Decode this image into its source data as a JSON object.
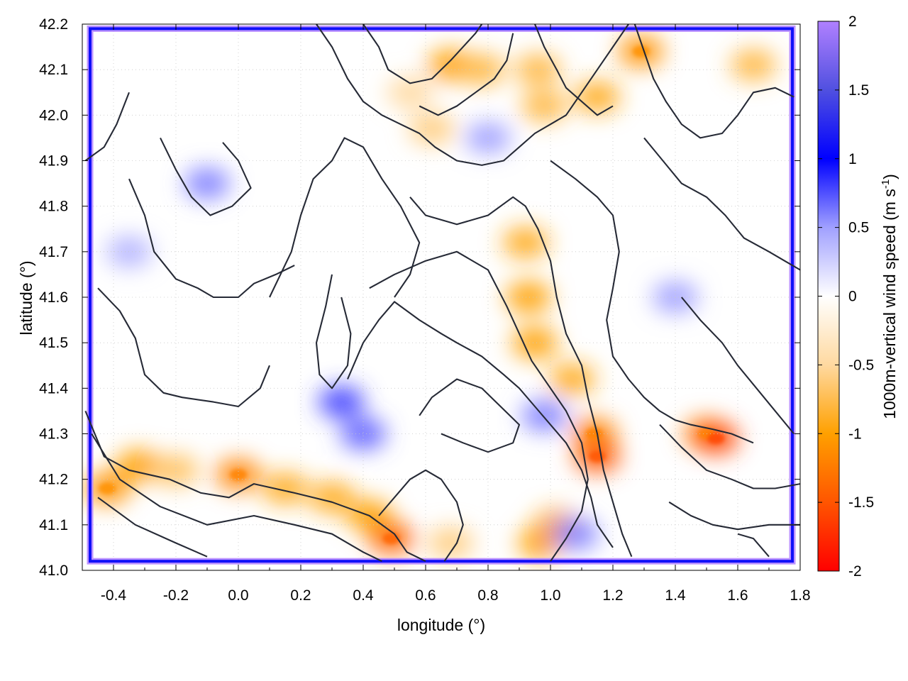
{
  "chart_data": {
    "type": "heatmap",
    "title": "",
    "xlabel": "longitude (°)",
    "ylabel": "latitude (°)",
    "colorbar_label": "1000m-vertical wind speed (m s",
    "colorbar_label_sup": "-1",
    "colorbar_label_end": ")",
    "xlim": [
      -0.5,
      1.8
    ],
    "ylim": [
      41.0,
      42.2
    ],
    "x_ticks": [
      -0.4,
      -0.2,
      0.0,
      0.2,
      0.4,
      0.6,
      0.8,
      1.0,
      1.2,
      1.4,
      1.6,
      1.8
    ],
    "x_tick_labels": [
      "-0.4",
      "-0.2",
      "0.0",
      "0.2",
      "0.4",
      "0.6",
      "0.8",
      "1.0",
      "1.2",
      "1.4",
      "1.6",
      "1.8"
    ],
    "y_ticks": [
      41.0,
      41.1,
      41.2,
      41.3,
      41.4,
      41.5,
      41.6,
      41.7,
      41.8,
      41.9,
      42.0,
      42.1,
      42.2
    ],
    "y_tick_labels": [
      "41.0",
      "41.1",
      "41.2",
      "41.3",
      "41.4",
      "41.5",
      "41.6",
      "41.7",
      "41.8",
      "41.9",
      "42.0",
      "42.1",
      "42.2"
    ],
    "clim": [
      -2,
      2
    ],
    "cbar_ticks": [
      2,
      1.5,
      1,
      0.5,
      0,
      -0.5,
      -1,
      -1.5,
      -2
    ],
    "cbar_tick_labels": [
      "2",
      "1.5",
      "1",
      "0.5",
      "0",
      "-0.5",
      "-1",
      "-1.5",
      "-2"
    ],
    "colorscale": [
      {
        "v": -2.0,
        "color": "#ff0000"
      },
      {
        "v": -1.5,
        "color": "#ff5500"
      },
      {
        "v": -1.0,
        "color": "#ffa000"
      },
      {
        "v": -0.5,
        "color": "#ffd9a0"
      },
      {
        "v": 0.0,
        "color": "#ffffff"
      },
      {
        "v": 0.5,
        "color": "#a0a0ff"
      },
      {
        "v": 1.0,
        "color": "#0000ff"
      },
      {
        "v": 1.5,
        "color": "#5050e0"
      },
      {
        "v": 2.0,
        "color": "#b080ff"
      }
    ],
    "grid": true,
    "negative_features": [
      {
        "lon": -0.42,
        "lat": 41.18,
        "value": -1.1
      },
      {
        "lon": -0.32,
        "lat": 41.23,
        "value": -1.0
      },
      {
        "lon": -0.2,
        "lat": 41.22,
        "value": -0.7
      },
      {
        "lon": 0.0,
        "lat": 41.21,
        "value": -1.2
      },
      {
        "lon": 0.15,
        "lat": 41.18,
        "value": -0.9
      },
      {
        "lon": 0.3,
        "lat": 41.16,
        "value": -0.9
      },
      {
        "lon": 0.42,
        "lat": 41.12,
        "value": -1.0
      },
      {
        "lon": 0.49,
        "lat": 41.07,
        "value": -1.4
      },
      {
        "lon": 0.68,
        "lat": 41.06,
        "value": -0.6
      },
      {
        "lon": 0.68,
        "lat": 42.11,
        "value": -1.0
      },
      {
        "lon": 0.78,
        "lat": 42.1,
        "value": -0.8
      },
      {
        "lon": 0.96,
        "lat": 42.1,
        "value": -0.8
      },
      {
        "lon": 0.98,
        "lat": 42.02,
        "value": -0.8
      },
      {
        "lon": 1.15,
        "lat": 42.04,
        "value": -0.9
      },
      {
        "lon": 1.29,
        "lat": 42.14,
        "value": -1.1
      },
      {
        "lon": 1.65,
        "lat": 42.11,
        "value": -0.8
      },
      {
        "lon": 0.92,
        "lat": 41.72,
        "value": -0.9
      },
      {
        "lon": 0.93,
        "lat": 41.6,
        "value": -1.0
      },
      {
        "lon": 0.95,
        "lat": 41.5,
        "value": -1.0
      },
      {
        "lon": 1.07,
        "lat": 41.42,
        "value": -0.9
      },
      {
        "lon": 1.14,
        "lat": 41.3,
        "value": -1.2
      },
      {
        "lon": 1.15,
        "lat": 41.25,
        "value": -1.5
      },
      {
        "lon": 1.02,
        "lat": 41.1,
        "value": -0.9
      },
      {
        "lon": 0.97,
        "lat": 41.06,
        "value": -1.0
      },
      {
        "lon": 1.5,
        "lat": 41.3,
        "value": -1.2
      },
      {
        "lon": 1.53,
        "lat": 41.29,
        "value": -1.6
      },
      {
        "lon": 0.62,
        "lat": 41.97,
        "value": -0.6
      },
      {
        "lon": 0.55,
        "lat": 42.05,
        "value": -0.5
      }
    ],
    "positive_features": [
      {
        "lon": 0.33,
        "lat": 41.37,
        "value": 0.8
      },
      {
        "lon": 0.4,
        "lat": 41.3,
        "value": 0.7
      },
      {
        "lon": -0.1,
        "lat": 41.85,
        "value": 0.6
      },
      {
        "lon": 1.08,
        "lat": 41.08,
        "value": 0.6
      },
      {
        "lon": 0.98,
        "lat": 41.34,
        "value": 0.6
      },
      {
        "lon": 1.4,
        "lat": 41.6,
        "value": 0.5
      },
      {
        "lon": 0.8,
        "lat": 41.95,
        "value": 0.5
      },
      {
        "lon": -0.35,
        "lat": 41.7,
        "value": 0.4
      }
    ],
    "contours": [
      [
        [
          -0.49,
          41.35
        ],
        [
          -0.43,
          41.25
        ],
        [
          -0.35,
          41.22
        ],
        [
          -0.22,
          41.2
        ],
        [
          -0.12,
          41.17
        ],
        [
          -0.03,
          41.16
        ],
        [
          0.05,
          41.19
        ],
        [
          0.18,
          41.17
        ],
        [
          0.3,
          41.15
        ],
        [
          0.42,
          41.12
        ],
        [
          0.5,
          41.08
        ],
        [
          0.54,
          41.04
        ],
        [
          0.6,
          41.02
        ]
      ],
      [
        [
          -0.47,
          41.3
        ],
        [
          -0.38,
          41.2
        ],
        [
          -0.25,
          41.14
        ],
        [
          -0.1,
          41.1
        ],
        [
          0.05,
          41.12
        ],
        [
          0.18,
          41.1
        ],
        [
          0.3,
          41.08
        ],
        [
          0.4,
          41.04
        ],
        [
          0.46,
          41.02
        ]
      ],
      [
        [
          -0.45,
          41.16
        ],
        [
          -0.33,
          41.1
        ],
        [
          -0.2,
          41.06
        ],
        [
          -0.1,
          41.03
        ]
      ],
      [
        [
          -0.49,
          41.9
        ],
        [
          -0.43,
          41.93
        ],
        [
          -0.39,
          41.98
        ],
        [
          -0.35,
          42.05
        ]
      ],
      [
        [
          -0.45,
          41.62
        ],
        [
          -0.38,
          41.57
        ],
        [
          -0.33,
          41.51
        ],
        [
          -0.3,
          41.43
        ],
        [
          -0.24,
          41.39
        ],
        [
          -0.18,
          41.38
        ],
        [
          -0.08,
          41.37
        ],
        [
          0.0,
          41.36
        ],
        [
          0.07,
          41.4
        ],
        [
          0.1,
          41.45
        ]
      ],
      [
        [
          -0.35,
          41.86
        ],
        [
          -0.3,
          41.78
        ],
        [
          -0.27,
          41.7
        ],
        [
          -0.2,
          41.64
        ],
        [
          -0.13,
          41.62
        ],
        [
          -0.08,
          41.6
        ],
        [
          0.0,
          41.6
        ],
        [
          0.05,
          41.63
        ],
        [
          0.12,
          41.65
        ],
        [
          0.18,
          41.67
        ]
      ],
      [
        [
          -0.25,
          41.95
        ],
        [
          -0.2,
          41.88
        ],
        [
          -0.15,
          41.82
        ],
        [
          -0.09,
          41.78
        ],
        [
          -0.02,
          41.8
        ],
        [
          0.04,
          41.84
        ],
        [
          0.0,
          41.9
        ],
        [
          -0.05,
          41.94
        ]
      ],
      [
        [
          0.1,
          41.6
        ],
        [
          0.17,
          41.7
        ],
        [
          0.2,
          41.78
        ],
        [
          0.24,
          41.86
        ],
        [
          0.3,
          41.9
        ],
        [
          0.34,
          41.95
        ],
        [
          0.4,
          41.93
        ],
        [
          0.46,
          41.86
        ],
        [
          0.52,
          41.8
        ],
        [
          0.58,
          41.72
        ],
        [
          0.55,
          41.65
        ],
        [
          0.5,
          41.6
        ]
      ],
      [
        [
          0.3,
          41.65
        ],
        [
          0.28,
          41.58
        ],
        [
          0.25,
          41.5
        ],
        [
          0.26,
          41.43
        ],
        [
          0.3,
          41.4
        ],
        [
          0.35,
          41.45
        ],
        [
          0.36,
          41.52
        ],
        [
          0.33,
          41.6
        ]
      ],
      [
        [
          0.35,
          41.42
        ],
        [
          0.4,
          41.5
        ],
        [
          0.45,
          41.55
        ],
        [
          0.5,
          41.59
        ],
        [
          0.58,
          41.55
        ],
        [
          0.65,
          41.52
        ],
        [
          0.7,
          41.5
        ],
        [
          0.78,
          41.47
        ],
        [
          0.85,
          41.43
        ],
        [
          0.9,
          41.4
        ],
        [
          0.95,
          41.36
        ],
        [
          1.0,
          41.32
        ],
        [
          1.05,
          41.28
        ],
        [
          1.1,
          41.22
        ],
        [
          1.13,
          41.16
        ],
        [
          1.15,
          41.1
        ],
        [
          1.2,
          41.05
        ]
      ],
      [
        [
          0.42,
          41.62
        ],
        [
          0.5,
          41.65
        ],
        [
          0.6,
          41.68
        ],
        [
          0.7,
          41.7
        ],
        [
          0.8,
          41.66
        ],
        [
          0.86,
          41.58
        ],
        [
          0.9,
          41.52
        ],
        [
          0.94,
          41.46
        ],
        [
          1.0,
          41.4
        ],
        [
          1.05,
          41.35
        ],
        [
          1.1,
          41.28
        ],
        [
          1.12,
          41.2
        ],
        [
          1.1,
          41.13
        ],
        [
          1.05,
          41.07
        ],
        [
          1.0,
          41.02
        ]
      ],
      [
        [
          0.55,
          41.82
        ],
        [
          0.6,
          41.78
        ],
        [
          0.7,
          41.76
        ],
        [
          0.8,
          41.78
        ],
        [
          0.88,
          41.82
        ],
        [
          0.92,
          41.8
        ],
        [
          0.96,
          41.75
        ],
        [
          1.0,
          41.68
        ],
        [
          1.02,
          41.6
        ],
        [
          1.05,
          41.52
        ],
        [
          1.1,
          41.45
        ],
        [
          1.12,
          41.38
        ],
        [
          1.15,
          41.3
        ],
        [
          1.17,
          41.22
        ],
        [
          1.2,
          41.15
        ],
        [
          1.23,
          41.08
        ],
        [
          1.26,
          41.03
        ]
      ],
      [
        [
          1.0,
          41.9
        ],
        [
          1.08,
          41.86
        ],
        [
          1.15,
          41.82
        ],
        [
          1.2,
          41.78
        ],
        [
          1.22,
          41.7
        ],
        [
          1.2,
          41.62
        ],
        [
          1.18,
          41.55
        ],
        [
          1.2,
          41.47
        ],
        [
          1.25,
          41.42
        ],
        [
          1.3,
          41.38
        ],
        [
          1.35,
          41.35
        ],
        [
          1.4,
          41.33
        ],
        [
          1.45,
          41.32
        ],
        [
          1.52,
          41.31
        ],
        [
          1.58,
          41.3
        ],
        [
          1.65,
          41.28
        ]
      ],
      [
        [
          1.3,
          41.95
        ],
        [
          1.36,
          41.9
        ],
        [
          1.42,
          41.85
        ],
        [
          1.5,
          41.82
        ],
        [
          1.56,
          41.78
        ],
        [
          1.62,
          41.73
        ],
        [
          1.7,
          41.7
        ],
        [
          1.75,
          41.68
        ],
        [
          1.8,
          41.66
        ]
      ],
      [
        [
          1.42,
          41.6
        ],
        [
          1.48,
          41.55
        ],
        [
          1.55,
          41.5
        ],
        [
          1.6,
          41.45
        ],
        [
          1.66,
          41.4
        ],
        [
          1.72,
          41.35
        ],
        [
          1.78,
          41.3
        ]
      ],
      [
        [
          1.35,
          41.32
        ],
        [
          1.42,
          41.27
        ],
        [
          1.5,
          41.22
        ],
        [
          1.58,
          41.2
        ],
        [
          1.65,
          41.18
        ],
        [
          1.72,
          41.18
        ],
        [
          1.8,
          41.19
        ]
      ],
      [
        [
          1.38,
          41.15
        ],
        [
          1.45,
          41.12
        ],
        [
          1.52,
          41.1
        ],
        [
          1.6,
          41.09
        ],
        [
          1.7,
          41.1
        ],
        [
          1.8,
          41.1
        ]
      ],
      [
        [
          0.25,
          42.2
        ],
        [
          0.3,
          42.15
        ],
        [
          0.35,
          42.08
        ],
        [
          0.4,
          42.03
        ],
        [
          0.46,
          42.0
        ],
        [
          0.52,
          41.98
        ],
        [
          0.58,
          41.96
        ],
        [
          0.63,
          41.93
        ],
        [
          0.7,
          41.9
        ],
        [
          0.78,
          41.89
        ],
        [
          0.85,
          41.9
        ],
        [
          0.9,
          41.93
        ],
        [
          0.95,
          41.96
        ],
        [
          1.0,
          41.98
        ],
        [
          1.05,
          42.0
        ],
        [
          1.1,
          42.05
        ],
        [
          1.15,
          42.1
        ],
        [
          1.2,
          42.15
        ],
        [
          1.25,
          42.2
        ]
      ],
      [
        [
          0.4,
          42.2
        ],
        [
          0.45,
          42.15
        ],
        [
          0.48,
          42.1
        ],
        [
          0.55,
          42.07
        ],
        [
          0.62,
          42.08
        ],
        [
          0.68,
          42.12
        ],
        [
          0.72,
          42.15
        ],
        [
          0.76,
          42.18
        ],
        [
          0.78,
          42.2
        ]
      ],
      [
        [
          0.58,
          42.02
        ],
        [
          0.64,
          42.0
        ],
        [
          0.7,
          42.02
        ],
        [
          0.76,
          42.05
        ],
        [
          0.82,
          42.08
        ],
        [
          0.86,
          42.12
        ],
        [
          0.88,
          42.18
        ]
      ],
      [
        [
          0.95,
          42.2
        ],
        [
          0.98,
          42.15
        ],
        [
          1.02,
          42.1
        ],
        [
          1.05,
          42.06
        ],
        [
          1.1,
          42.03
        ],
        [
          1.15,
          42.0
        ],
        [
          1.2,
          42.02
        ]
      ],
      [
        [
          1.27,
          42.2
        ],
        [
          1.3,
          42.14
        ],
        [
          1.33,
          42.08
        ],
        [
          1.37,
          42.03
        ],
        [
          1.42,
          41.98
        ],
        [
          1.48,
          41.95
        ],
        [
          1.55,
          41.96
        ],
        [
          1.6,
          42.0
        ],
        [
          1.65,
          42.05
        ],
        [
          1.72,
          42.06
        ],
        [
          1.78,
          42.04
        ]
      ],
      [
        [
          1.6,
          41.08
        ],
        [
          1.65,
          41.07
        ],
        [
          1.7,
          41.03
        ]
      ],
      [
        [
          0.66,
          41.02
        ],
        [
          0.7,
          41.06
        ],
        [
          0.72,
          41.1
        ],
        [
          0.7,
          41.15
        ],
        [
          0.65,
          41.2
        ],
        [
          0.6,
          41.22
        ],
        [
          0.55,
          41.2
        ],
        [
          0.5,
          41.16
        ],
        [
          0.45,
          41.12
        ]
      ],
      [
        [
          0.58,
          41.34
        ],
        [
          0.62,
          41.38
        ],
        [
          0.7,
          41.42
        ],
        [
          0.78,
          41.4
        ],
        [
          0.84,
          41.36
        ],
        [
          0.9,
          41.32
        ],
        [
          0.88,
          41.28
        ],
        [
          0.8,
          41.26
        ],
        [
          0.72,
          41.28
        ],
        [
          0.65,
          41.3
        ]
      ]
    ]
  }
}
